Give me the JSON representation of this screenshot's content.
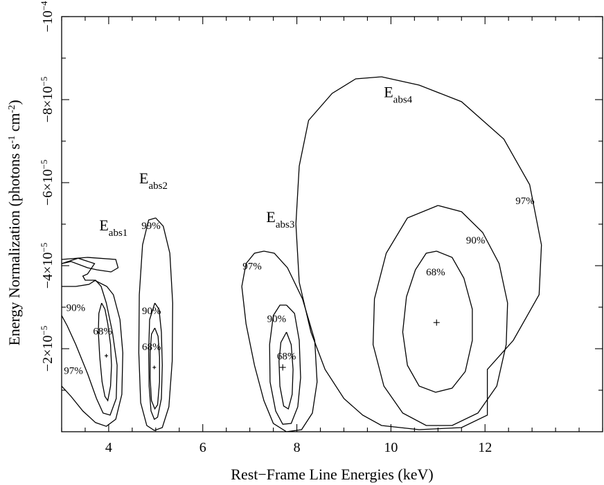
{
  "chart_data": {
    "type": "contour",
    "xlabel": "Rest−Frame Line Energies (keV)",
    "ylabel_prefix": "Energy Normalization (photons s",
    "ylabel_sup1": "-1",
    "ylabel_mid": " cm",
    "ylabel_sup2": "-2",
    "ylabel_suffix": ")",
    "xlim": [
      3,
      14.5
    ],
    "ylim": [
      0,
      -0.0001
    ],
    "x_ticks": [
      {
        "value": 4,
        "label": "4"
      },
      {
        "value": 6,
        "label": "6"
      },
      {
        "value": 8,
        "label": "8"
      },
      {
        "value": 10,
        "label": "10"
      },
      {
        "value": 12,
        "label": "12"
      }
    ],
    "y_ticks": [
      {
        "value": -2e-05,
        "mantissa": "−2×10",
        "exp": "−5"
      },
      {
        "value": -4e-05,
        "mantissa": "−4×10",
        "exp": "−5"
      },
      {
        "value": -6e-05,
        "mantissa": "−6×10",
        "exp": "−5"
      },
      {
        "value": -8e-05,
        "mantissa": "−8×10",
        "exp": "−5"
      },
      {
        "value": -0.0001,
        "mantissa": "−10",
        "exp": "−4"
      }
    ],
    "x_minor_step": 0.5,
    "y_minor_step": -1e-05,
    "grid": false,
    "series": [
      {
        "name_base": "E",
        "name_sub": "abs1",
        "label_pos": [
          3.8,
          -4.85e-05
        ],
        "best_fit": [
          3.95,
          -1.83e-05
        ],
        "contours": [
          {
            "level": "68%",
            "label_pos": [
              3.87,
              -2.34e-05
            ],
            "points": [
              [
                3.85,
                -3.1e-05
              ],
              [
                3.92,
                -2.95e-05
              ],
              [
                3.98,
                -2.6e-05
              ],
              [
                4.04,
                -2.1e-05
              ],
              [
                4.06,
                -1.6e-05
              ],
              [
                4.04,
                -1.1e-05
              ],
              [
                3.98,
                -7.5e-06
              ],
              [
                3.92,
                -8.5e-06
              ],
              [
                3.86,
                -1.2e-05
              ],
              [
                3.81,
                -1.8e-05
              ],
              [
                3.78,
                -2.4e-05
              ],
              [
                3.79,
                -2.85e-05
              ],
              [
                3.85,
                -3.1e-05
              ]
            ]
          },
          {
            "level": "90%",
            "label_pos": [
              3.3,
              -2.91e-05
            ],
            "points": [
              [
                3.0,
                -3.5e-05
              ],
              [
                3.3,
                -3.5e-05
              ],
              [
                3.58,
                -3.55e-05
              ],
              [
                3.72,
                -3.65e-05
              ],
              [
                3.84,
                -3.5e-05
              ],
              [
                3.95,
                -3.1e-05
              ],
              [
                4.08,
                -2.4e-05
              ],
              [
                4.18,
                -1.6e-05
              ],
              [
                4.16,
                -8e-06
              ],
              [
                4.03,
                -4e-06
              ],
              [
                3.88,
                -4.5e-06
              ],
              [
                3.74,
                -8e-06
              ],
              [
                3.55,
                -1.4e-05
              ],
              [
                3.3,
                -2.1e-05
              ],
              [
                3.12,
                -2.55e-05
              ],
              [
                3.0,
                -2.8e-05
              ]
            ]
          },
          {
            "level": "97%",
            "label_pos": [
              3.25,
              -1.39e-05
            ],
            "points": [
              [
                3.0,
                -4.05e-05
              ],
              [
                3.35,
                -4.18e-05
              ],
              [
                3.7,
                -4.05e-05
              ],
              [
                3.55,
                -3.8e-05
              ],
              [
                3.45,
                -3.75e-05
              ],
              [
                3.5,
                -3.65e-05
              ],
              [
                3.7,
                -3.65e-05
              ],
              [
                3.96,
                -3.5e-05
              ],
              [
                4.1,
                -3.3e-05
              ],
              [
                4.24,
                -2.7e-05
              ],
              [
                4.3,
                -1.9e-05
              ],
              [
                4.28,
                -9e-06
              ],
              [
                4.15,
                -3e-06
              ],
              [
                3.95,
                -1.3e-06
              ],
              [
                3.72,
                -2.2e-06
              ],
              [
                3.45,
                -5e-06
              ],
              [
                3.2,
                -8.5e-06
              ],
              [
                3.0,
                -1.1e-05
              ]
            ]
          },
          {
            "level": "",
            "label_pos": null,
            "points": [
              [
                3.0,
                -4.15e-05
              ],
              [
                3.55,
                -4.2e-05
              ],
              [
                4.15,
                -4.15e-05
              ],
              [
                4.2,
                -3.95e-05
              ],
              [
                4.05,
                -3.85e-05
              ],
              [
                3.75,
                -3.9e-05
              ],
              [
                3.55,
                -3.95e-05
              ],
              [
                3.2,
                -4.1e-05
              ],
              [
                3.0,
                -4.05e-05
              ]
            ]
          }
        ]
      },
      {
        "name_base": "E",
        "name_sub": "abs2",
        "label_pos": [
          4.65,
          -5.98e-05
        ],
        "best_fit": [
          4.97,
          -1.55e-05
        ],
        "contours": [
          {
            "level": "68%",
            "label_pos": [
              4.91,
              -1.97e-05
            ],
            "points": [
              [
                4.98,
                -2.5e-05
              ],
              [
                5.05,
                -2.3e-05
              ],
              [
                5.08,
                -1.8e-05
              ],
              [
                5.08,
                -1.2e-05
              ],
              [
                5.04,
                -6.5e-06
              ],
              [
                4.98,
                -5.5e-06
              ],
              [
                4.91,
                -7.5e-06
              ],
              [
                4.88,
                -1.3e-05
              ],
              [
                4.88,
                -1.9e-05
              ],
              [
                4.91,
                -2.35e-05
              ],
              [
                4.98,
                -2.5e-05
              ]
            ]
          },
          {
            "level": "90%",
            "label_pos": [
              4.91,
              -2.83e-05
            ],
            "points": [
              [
                4.98,
                -3.1e-05
              ],
              [
                5.07,
                -2.95e-05
              ],
              [
                5.12,
                -2.4e-05
              ],
              [
                5.14,
                -1.6e-05
              ],
              [
                5.12,
                -8e-06
              ],
              [
                5.04,
                -3.5e-06
              ],
              [
                4.97,
                -3e-06
              ],
              [
                4.9,
                -5e-06
              ],
              [
                4.86,
                -1.1e-05
              ],
              [
                4.85,
                -1.9e-05
              ],
              [
                4.87,
                -2.7e-05
              ],
              [
                4.98,
                -3.1e-05
              ]
            ]
          },
          {
            "level": "99%",
            "label_pos": [
              4.9,
              -4.88e-05
            ],
            "points": [
              [
                5.0,
                -5.15e-05
              ],
              [
                5.16,
                -4.95e-05
              ],
              [
                5.3,
                -4.3e-05
              ],
              [
                5.36,
                -3.1e-05
              ],
              [
                5.35,
                -1.7e-05
              ],
              [
                5.28,
                -6e-06
              ],
              [
                5.14,
                -1e-06
              ],
              [
                4.97,
                -3e-07
              ],
              [
                4.81,
                -1.5e-06
              ],
              [
                4.68,
                -7e-06
              ],
              [
                4.64,
                -1.9e-05
              ],
              [
                4.65,
                -3.3e-05
              ],
              [
                4.72,
                -4.5e-05
              ],
              [
                4.85,
                -5.1e-05
              ],
              [
                5.0,
                -5.15e-05
              ]
            ]
          }
        ]
      },
      {
        "name_base": "E",
        "name_sub": "abs3",
        "label_pos": [
          7.35,
          -5.05e-05
        ],
        "best_fit": [
          7.7,
          -1.55e-05
        ],
        "contours": [
          {
            "level": "68%",
            "label_pos": [
              7.78,
              -1.74e-05
            ],
            "points": [
              [
                7.78,
                -2.4e-05
              ],
              [
                7.88,
                -2.1e-05
              ],
              [
                7.92,
                -1.5e-05
              ],
              [
                7.9,
                -9e-06
              ],
              [
                7.82,
                -5.5e-06
              ],
              [
                7.72,
                -6.2e-06
              ],
              [
                7.64,
                -1.1e-05
              ],
              [
                7.62,
                -1.7e-05
              ],
              [
                7.66,
                -2.15e-05
              ],
              [
                7.78,
                -2.4e-05
              ]
            ]
          },
          {
            "level": "90%",
            "label_pos": [
              7.57,
              -2.64e-05
            ],
            "points": [
              [
                7.78,
                -3.05e-05
              ],
              [
                7.95,
                -2.85e-05
              ],
              [
                8.05,
                -2.2e-05
              ],
              [
                8.08,
                -1.3e-05
              ],
              [
                8.02,
                -6e-06
              ],
              [
                7.88,
                -2e-06
              ],
              [
                7.7,
                -1.8e-06
              ],
              [
                7.55,
                -5e-06
              ],
              [
                7.43,
                -1.2e-05
              ],
              [
                7.42,
                -2.1e-05
              ],
              [
                7.5,
                -2.8e-05
              ],
              [
                7.64,
                -3.05e-05
              ],
              [
                7.78,
                -3.05e-05
              ]
            ]
          },
          {
            "level": "97%",
            "label_pos": [
              7.05,
              -3.91e-05
            ],
            "points": [
              [
                7.3,
                -4.35e-05
              ],
              [
                7.52,
                -4.3e-05
              ],
              [
                7.8,
                -3.95e-05
              ],
              [
                8.12,
                -3.2e-05
              ],
              [
                8.38,
                -2.2e-05
              ],
              [
                8.43,
                -1.2e-05
              ],
              [
                8.33,
                -4.5e-06
              ],
              [
                8.1,
                -5e-07
              ],
              [
                7.78,
                0.0
              ],
              [
                7.5,
                -2e-06
              ],
              [
                7.3,
                -7.5e-06
              ],
              [
                7.1,
                -1.6e-05
              ],
              [
                6.92,
                -2.6e-05
              ],
              [
                6.83,
                -3.5e-05
              ],
              [
                6.92,
                -4.05e-05
              ],
              [
                7.1,
                -4.3e-05
              ],
              [
                7.3,
                -4.35e-05
              ]
            ]
          }
        ]
      },
      {
        "name_base": "E",
        "name_sub": "abs4",
        "label_pos": [
          9.85,
          -8.06e-05
        ],
        "best_fit": [
          10.97,
          -2.63e-05
        ],
        "contours": [
          {
            "level": "68%",
            "label_pos": [
              10.95,
              -3.77e-05
            ],
            "points": [
              [
                10.97,
                -4.35e-05
              ],
              [
                11.3,
                -4.2e-05
              ],
              [
                11.55,
                -3.7e-05
              ],
              [
                11.73,
                -2.95e-05
              ],
              [
                11.73,
                -2.2e-05
              ],
              [
                11.58,
                -1.45e-05
              ],
              [
                11.3,
                -1.05e-05
              ],
              [
                10.95,
                -9.5e-06
              ],
              [
                10.6,
                -1.1e-05
              ],
              [
                10.35,
                -1.6e-05
              ],
              [
                10.25,
                -2.4e-05
              ],
              [
                10.33,
                -3.25e-05
              ],
              [
                10.52,
                -3.9e-05
              ],
              [
                10.75,
                -4.3e-05
              ],
              [
                10.97,
                -4.35e-05
              ]
            ]
          },
          {
            "level": "90%",
            "label_pos": [
              11.8,
              -4.53e-05
            ],
            "points": [
              [
                11.0,
                -5.45e-05
              ],
              [
                11.5,
                -5.3e-05
              ],
              [
                11.95,
                -4.8e-05
              ],
              [
                12.3,
                -4.05e-05
              ],
              [
                12.48,
                -3.1e-05
              ],
              [
                12.45,
                -2.1e-05
              ],
              [
                12.25,
                -1.1e-05
              ],
              [
                11.85,
                -4.5e-06
              ],
              [
                11.3,
                -1.5e-06
              ],
              [
                10.75,
                -1.5e-06
              ],
              [
                10.25,
                -4.5e-06
              ],
              [
                9.85,
                -1.1e-05
              ],
              [
                9.62,
                -2.1e-05
              ],
              [
                9.65,
                -3.2e-05
              ],
              [
                9.9,
                -4.3e-05
              ],
              [
                10.35,
                -5.15e-05
              ],
              [
                11.0,
                -5.45e-05
              ]
            ]
          },
          {
            "level": "97%",
            "label_pos": [
              12.85,
              -5.48e-05
            ],
            "points": [
              [
                9.8,
                -8.55e-05
              ],
              [
                10.6,
                -8.35e-05
              ],
              [
                11.5,
                -7.95e-05
              ],
              [
                12.4,
                -7.05e-05
              ],
              [
                12.95,
                -5.95e-05
              ],
              [
                13.2,
                -4.5e-05
              ],
              [
                13.15,
                -3.3e-05
              ],
              [
                12.6,
                -2.2e-05
              ],
              [
                12.05,
                -1.5e-05
              ],
              [
                12.05,
                -4e-06
              ],
              [
                11.5,
                -1e-06
              ],
              [
                10.6,
                -5e-07
              ],
              [
                9.8,
                -1.5e-06
              ],
              [
                9.4,
                -4e-06
              ],
              [
                9.0,
                -8e-06
              ],
              [
                8.6,
                -1.5e-05
              ],
              [
                8.3,
                -2.4e-05
              ],
              [
                8.05,
                -3.6e-05
              ],
              [
                7.98,
                -5e-05
              ],
              [
                8.05,
                -6.4e-05
              ],
              [
                8.25,
                -7.5e-05
              ],
              [
                8.75,
                -8.15e-05
              ],
              [
                9.25,
                -8.5e-05
              ],
              [
                9.8,
                -8.55e-05
              ]
            ]
          }
        ]
      }
    ]
  }
}
